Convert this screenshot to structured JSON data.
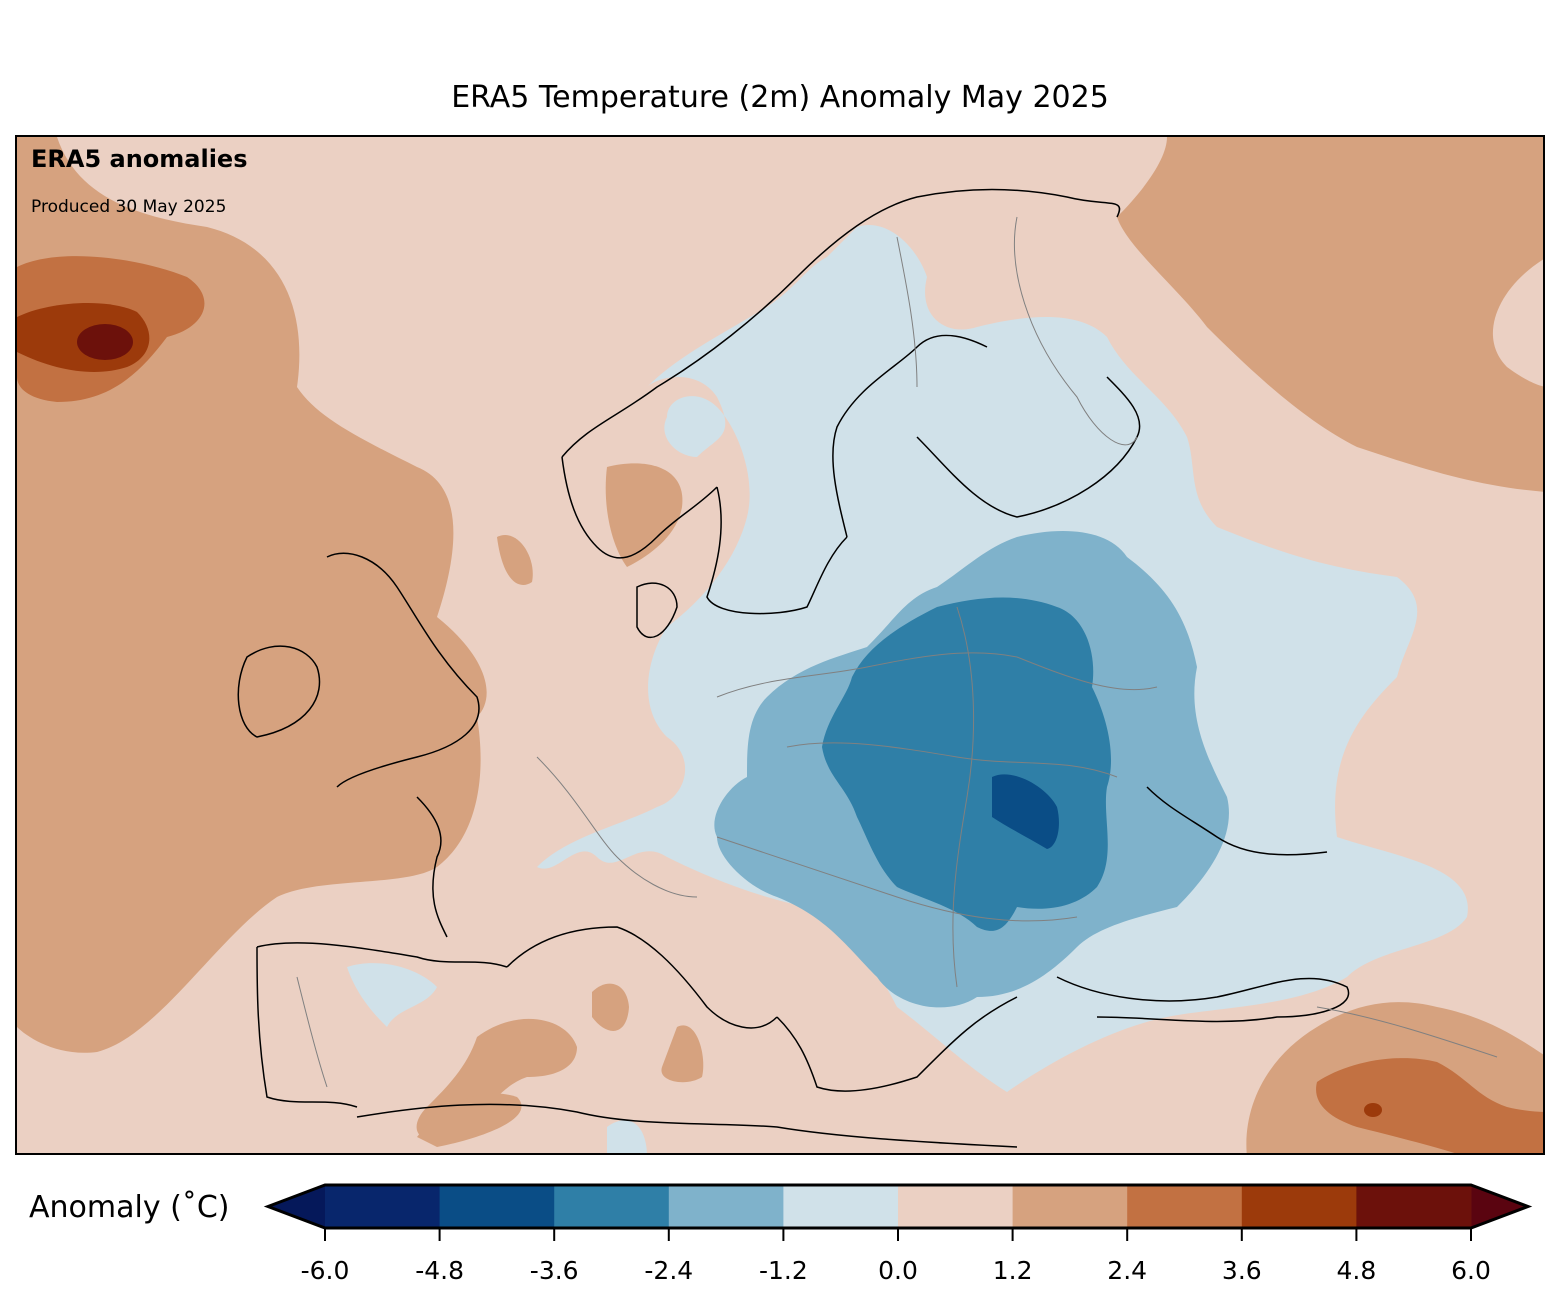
{
  "title": "ERA5 Temperature (2m) Anomaly May 2025",
  "annotations": {
    "heading": "ERA5 anomalies",
    "produced": "Produced 30 May 2025"
  },
  "colorbar": {
    "label": "Anomaly (˚C)",
    "ticks": [
      "-6.0",
      "-4.8",
      "-3.6",
      "-2.4",
      "-1.2",
      "0.0",
      "1.2",
      "2.4",
      "3.6",
      "4.8",
      "6.0"
    ],
    "levels": [
      -6.0,
      -4.8,
      -3.6,
      -2.4,
      -1.2,
      0.0,
      1.2,
      2.4,
      3.6,
      4.8,
      6.0
    ],
    "colors": [
      "#08266c",
      "#0a4d86",
      "#2f7fa7",
      "#7fb2cb",
      "#d0e1e9",
      "#ebd0c3",
      "#d6a27f",
      "#c27142",
      "#9c3a0b",
      "#6c110b"
    ],
    "extend_low_color": "#05185a",
    "extend_high_color": "#5a0410"
  }
}
